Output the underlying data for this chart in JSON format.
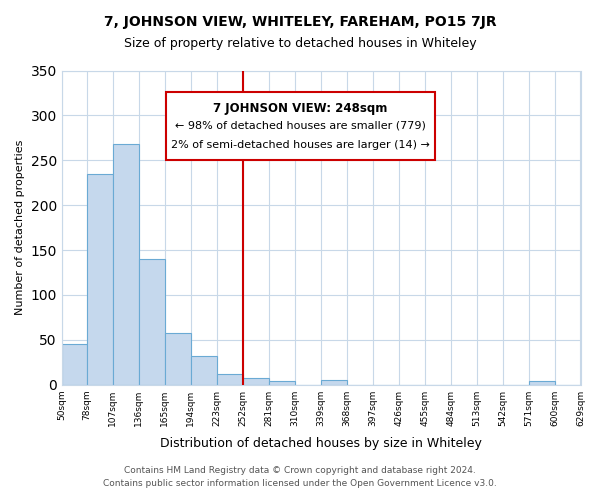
{
  "title": "7, JOHNSON VIEW, WHITELEY, FAREHAM, PO15 7JR",
  "subtitle": "Size of property relative to detached houses in Whiteley",
  "xlabel": "Distribution of detached houses by size in Whiteley",
  "ylabel": "Number of detached properties",
  "bar_edges": [
    50,
    78,
    107,
    136,
    165,
    194,
    223,
    252,
    281,
    310,
    339,
    368,
    397,
    426,
    455,
    484,
    513,
    542,
    571,
    600,
    629
  ],
  "bar_heights": [
    45,
    235,
    268,
    140,
    57,
    32,
    12,
    7,
    4,
    0,
    5,
    0,
    0,
    0,
    0,
    0,
    0,
    0,
    4,
    0
  ],
  "bar_color": "#c5d8ed",
  "bar_edgecolor": "#6aaad4",
  "ref_line_x": 252,
  "ref_line_color": "#cc0000",
  "annotation_title": "7 JOHNSON VIEW: 248sqm",
  "annotation_line1": "← 98% of detached houses are smaller (779)",
  "annotation_line2": "2% of semi-detached houses are larger (14) →",
  "annotation_box_color": "#cc0000",
  "ylim": [
    0,
    350
  ],
  "yticks": [
    0,
    50,
    100,
    150,
    200,
    250,
    300,
    350
  ],
  "tick_labels": [
    "50sqm",
    "78sqm",
    "107sqm",
    "136sqm",
    "165sqm",
    "194sqm",
    "223sqm",
    "252sqm",
    "281sqm",
    "310sqm",
    "339sqm",
    "368sqm",
    "397sqm",
    "426sqm",
    "455sqm",
    "484sqm",
    "513sqm",
    "542sqm",
    "571sqm",
    "600sqm",
    "629sqm"
  ],
  "footer_line1": "Contains HM Land Registry data © Crown copyright and database right 2024.",
  "footer_line2": "Contains public sector information licensed under the Open Government Licence v3.0.",
  "bg_color": "#ffffff",
  "grid_color": "#c8d8e8"
}
